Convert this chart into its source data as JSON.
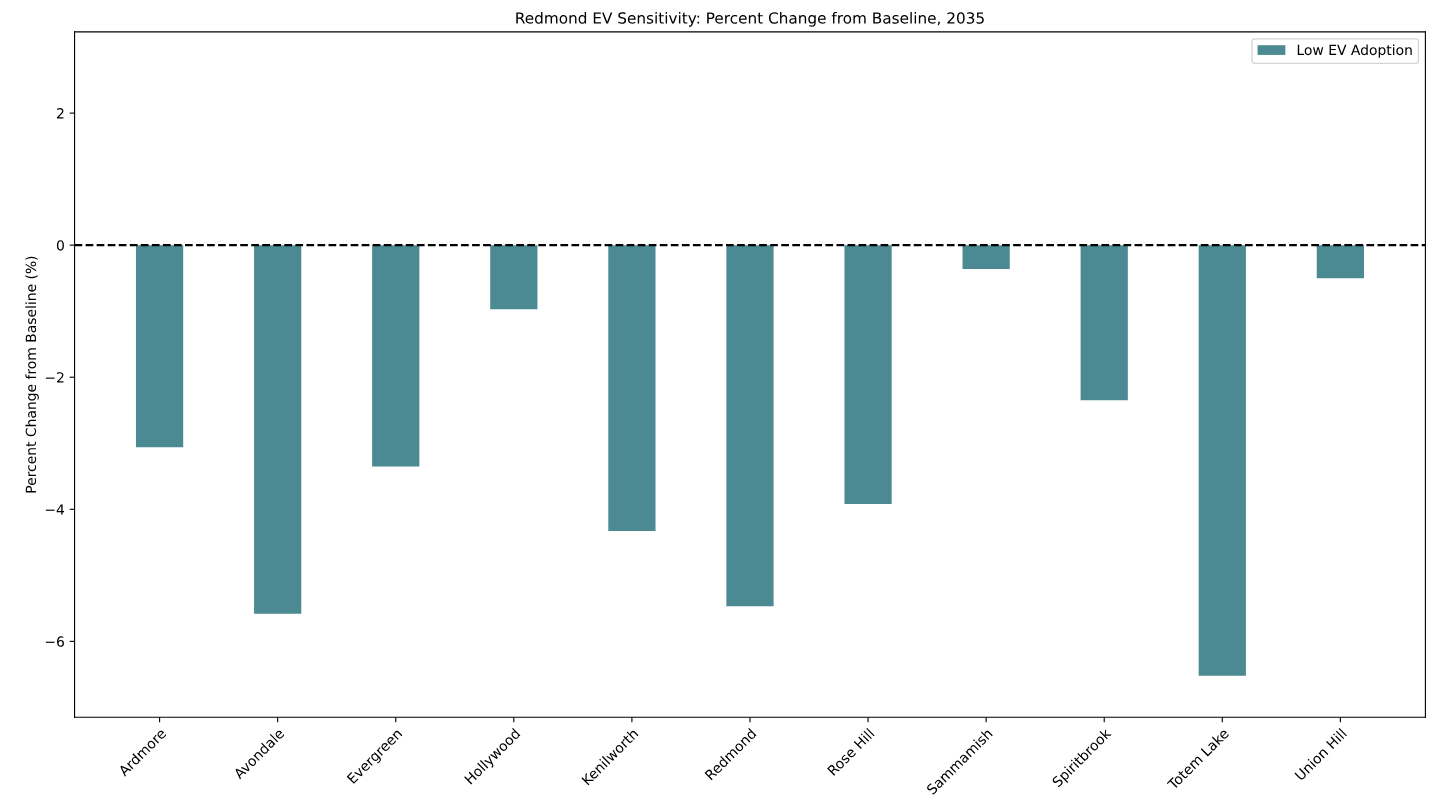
{
  "chart_data": {
    "type": "bar",
    "title": "Redmond EV Sensitivity: Percent Change from Baseline, 2035",
    "ylabel": "Percent Change from Baseline (%)",
    "categories": [
      "Ardmore",
      "Avondale",
      "Evergreen",
      "Hollywood",
      "Kenilworth",
      "Redmond",
      "Rose Hill",
      "Sammamish",
      "Spiritbrook",
      "Totem Lake",
      "Union Hill"
    ],
    "series": [
      {
        "name": "Low EV Adoption",
        "color": "#4c8a93",
        "values": [
          -3.06,
          -5.58,
          -3.35,
          -0.97,
          -4.33,
          -5.47,
          -3.92,
          -0.36,
          -2.35,
          -6.52,
          -0.5
        ]
      }
    ],
    "ylim": [
      -7.15,
      3.23
    ],
    "yticks": [
      {
        "value": -6,
        "label": "−6"
      },
      {
        "value": -4,
        "label": "−4"
      },
      {
        "value": -2,
        "label": "−2"
      },
      0,
      2
    ],
    "ref_lines": [
      {
        "axis": "y",
        "value": 0,
        "color": "#000000",
        "line_style": "dashed"
      }
    ],
    "grid": false,
    "legend": "top right"
  }
}
